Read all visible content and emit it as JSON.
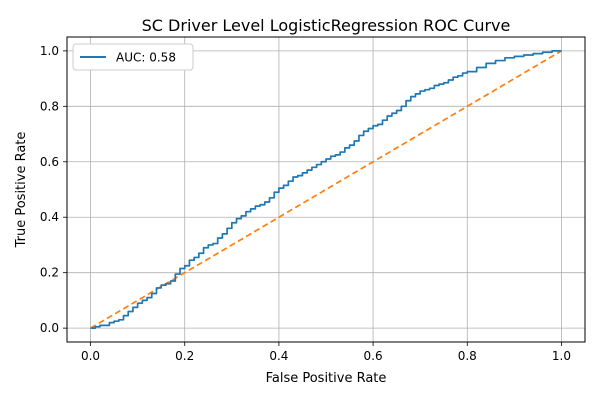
{
  "chart_data": {
    "type": "line",
    "title": "SC Driver Level LogisticRegression ROC Curve",
    "xlabel": "False Positive Rate",
    "ylabel": "True Positive Rate",
    "xlim": [
      -0.05,
      1.05
    ],
    "ylim": [
      -0.05,
      1.05
    ],
    "xticks": [
      "0.0",
      "0.2",
      "0.4",
      "0.6",
      "0.8",
      "1.0"
    ],
    "yticks": [
      "0.0",
      "0.2",
      "0.4",
      "0.6",
      "0.8",
      "1.0"
    ],
    "grid": true,
    "legend_position": "top-left",
    "series": [
      {
        "name": "AUC: 0.58",
        "color": "#1f77b4",
        "style": "solid",
        "x": [
          0.0,
          0.01,
          0.02,
          0.04,
          0.05,
          0.06,
          0.07,
          0.08,
          0.09,
          0.1,
          0.11,
          0.12,
          0.13,
          0.14,
          0.15,
          0.16,
          0.17,
          0.18,
          0.19,
          0.2,
          0.21,
          0.22,
          0.23,
          0.24,
          0.25,
          0.26,
          0.27,
          0.28,
          0.29,
          0.3,
          0.31,
          0.32,
          0.33,
          0.34,
          0.35,
          0.36,
          0.37,
          0.38,
          0.39,
          0.4,
          0.41,
          0.42,
          0.43,
          0.44,
          0.45,
          0.46,
          0.47,
          0.48,
          0.49,
          0.5,
          0.51,
          0.52,
          0.53,
          0.54,
          0.55,
          0.56,
          0.57,
          0.58,
          0.59,
          0.6,
          0.61,
          0.62,
          0.63,
          0.64,
          0.65,
          0.66,
          0.67,
          0.68,
          0.69,
          0.7,
          0.71,
          0.72,
          0.73,
          0.74,
          0.75,
          0.76,
          0.77,
          0.78,
          0.79,
          0.8,
          0.82,
          0.84,
          0.86,
          0.88,
          0.9,
          0.92,
          0.94,
          0.96,
          0.98,
          1.0
        ],
        "y": [
          0.0,
          0.005,
          0.01,
          0.02,
          0.025,
          0.03,
          0.045,
          0.06,
          0.075,
          0.09,
          0.1,
          0.11,
          0.125,
          0.145,
          0.155,
          0.16,
          0.17,
          0.195,
          0.215,
          0.225,
          0.245,
          0.255,
          0.27,
          0.29,
          0.3,
          0.305,
          0.325,
          0.34,
          0.36,
          0.38,
          0.395,
          0.405,
          0.42,
          0.43,
          0.44,
          0.445,
          0.455,
          0.47,
          0.49,
          0.505,
          0.515,
          0.53,
          0.545,
          0.55,
          0.56,
          0.57,
          0.58,
          0.59,
          0.6,
          0.61,
          0.62,
          0.625,
          0.635,
          0.65,
          0.66,
          0.675,
          0.695,
          0.71,
          0.72,
          0.73,
          0.735,
          0.75,
          0.765,
          0.775,
          0.785,
          0.8,
          0.82,
          0.835,
          0.845,
          0.855,
          0.86,
          0.865,
          0.875,
          0.88,
          0.885,
          0.895,
          0.905,
          0.91,
          0.92,
          0.925,
          0.94,
          0.955,
          0.965,
          0.975,
          0.98,
          0.985,
          0.99,
          0.995,
          1.0,
          1.0
        ]
      },
      {
        "name": "",
        "color": "#ff7f0e",
        "style": "dashed",
        "x": [
          0.0,
          1.0
        ],
        "y": [
          0.0,
          1.0
        ]
      }
    ]
  }
}
